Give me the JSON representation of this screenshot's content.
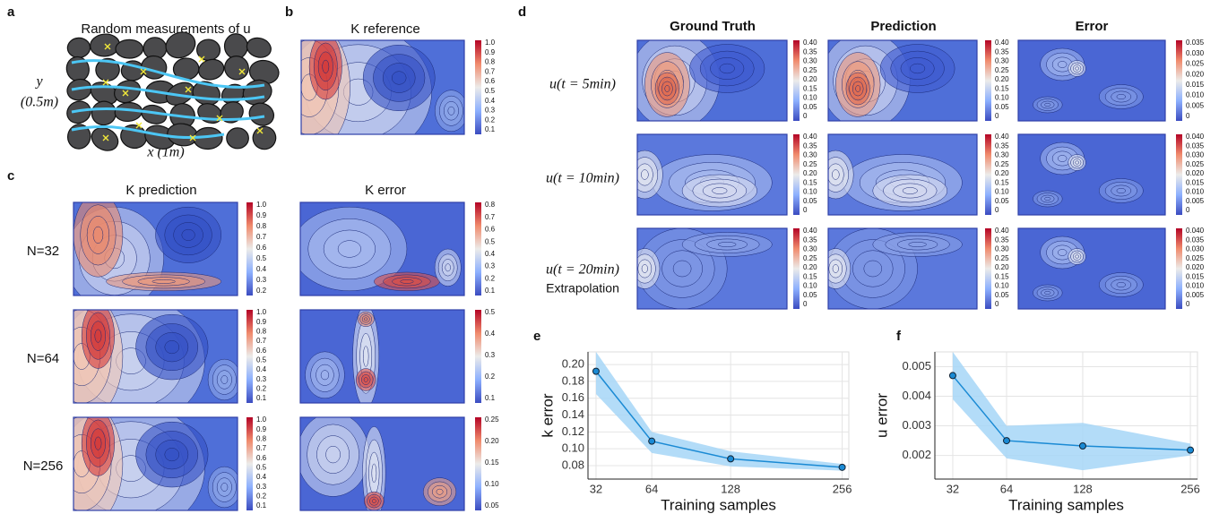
{
  "panels": {
    "a": {
      "label": "a",
      "title": "Random measurements of u",
      "y_label": "y",
      "y_unit": "(0.5m)",
      "x_label": "x (1m)"
    },
    "b": {
      "label": "b",
      "title": "K reference",
      "colorbar": [
        "1.0",
        "0.9",
        "0.8",
        "0.7",
        "0.6",
        "0.5",
        "0.4",
        "0.3",
        "0.2",
        "0.1"
      ]
    },
    "c": {
      "label": "c",
      "columns": [
        "K prediction",
        "K error"
      ],
      "rows": [
        {
          "name": "N=32",
          "prediction_colorbar": [
            "1.0",
            "0.9",
            "0.8",
            "0.7",
            "0.6",
            "0.5",
            "0.4",
            "0.3",
            "0.2"
          ],
          "error_colorbar": [
            "0.8",
            "0.7",
            "0.6",
            "0.5",
            "0.4",
            "0.3",
            "0.2",
            "0.1"
          ]
        },
        {
          "name": "N=64",
          "prediction_colorbar": [
            "1.0",
            "0.9",
            "0.8",
            "0.7",
            "0.6",
            "0.5",
            "0.4",
            "0.3",
            "0.2",
            "0.1"
          ],
          "error_colorbar": [
            "0.5",
            "0.4",
            "0.3",
            "0.2",
            "0.1"
          ]
        },
        {
          "name": "N=256",
          "prediction_colorbar": [
            "1.0",
            "0.9",
            "0.8",
            "0.7",
            "0.6",
            "0.5",
            "0.4",
            "0.3",
            "0.2",
            "0.1"
          ],
          "error_colorbar": [
            "0.25",
            "0.20",
            "0.15",
            "0.10",
            "0.05"
          ]
        }
      ]
    },
    "d": {
      "label": "d",
      "columns": [
        "Ground Truth",
        "Prediction",
        "Error"
      ],
      "rows": [
        {
          "name": "u(t = 5min)",
          "colorbars": [
            [
              "0.40",
              "0.35",
              "0.30",
              "0.25",
              "0.20",
              "0.15",
              "0.10",
              "0.05",
              "0"
            ],
            [
              "0.40",
              "0.35",
              "0.30",
              "0.25",
              "0.20",
              "0.15",
              "0.10",
              "0.05",
              "0"
            ],
            [
              "0.035",
              "0.030",
              "0.025",
              "0.020",
              "0.015",
              "0.010",
              "0.005",
              "0"
            ]
          ]
        },
        {
          "name": "u(t = 10min)",
          "colorbars": [
            [
              "0.40",
              "0.35",
              "0.30",
              "0.25",
              "0.20",
              "0.15",
              "0.10",
              "0.05",
              "0"
            ],
            [
              "0.40",
              "0.35",
              "0.30",
              "0.25",
              "0.20",
              "0.15",
              "0.10",
              "0.05",
              "0"
            ],
            [
              "0.040",
              "0.035",
              "0.030",
              "0.025",
              "0.020",
              "0.015",
              "0.010",
              "0.005",
              "0"
            ]
          ]
        },
        {
          "name": "u(t = 20min)",
          "note": "Extrapolation",
          "colorbars": [
            [
              "0.40",
              "0.35",
              "0.30",
              "0.25",
              "0.20",
              "0.15",
              "0.10",
              "0.05",
              "0"
            ],
            [
              "0.40",
              "0.35",
              "0.30",
              "0.25",
              "0.20",
              "0.15",
              "0.10",
              "0.05",
              "0"
            ],
            [
              "0.040",
              "0.035",
              "0.030",
              "0.025",
              "0.020",
              "0.015",
              "0.010",
              "0.005",
              "0"
            ]
          ]
        }
      ]
    }
  },
  "chart_data": [
    {
      "type": "line",
      "label": "e",
      "xlabel": "Training samples",
      "ylabel": "k error",
      "x": [
        32,
        64,
        128,
        256
      ],
      "xscale": "sqrt",
      "xlim": [
        28.3,
        265
      ],
      "xticks": [
        32,
        64,
        128,
        256
      ],
      "values": [
        0.192,
        0.109,
        0.088,
        0.078
      ],
      "lower": [
        0.165,
        0.095,
        0.079,
        0.074
      ],
      "upper": [
        0.215,
        0.12,
        0.097,
        0.082
      ],
      "ylim": [
        0.064,
        0.215
      ],
      "yticks": [
        0.08,
        {
          "value": 0.1,
          "label": "0.10"
        },
        0.12,
        0.14,
        0.16,
        0.18,
        {
          "value": 0.2,
          "label": "0.20"
        }
      ],
      "grid": true,
      "color": "#1a8ad4",
      "band_color": "#a6d6f7"
    },
    {
      "type": "line",
      "label": "f",
      "xlabel": "Training samples",
      "ylabel": "u error",
      "x": [
        32,
        64,
        128,
        256
      ],
      "xscale": "sqrt",
      "xlim": [
        23.8,
        266
      ],
      "xticks": [
        32,
        64,
        128,
        256
      ],
      "values": [
        0.0047,
        0.0025,
        0.00232,
        0.00218
      ],
      "lower": [
        0.0039,
        0.0019,
        0.0015,
        0.002
      ],
      "upper": [
        0.0055,
        0.003,
        0.0031,
        0.0024
      ],
      "ylim": [
        0.0012,
        0.0055
      ],
      "yticks": [
        0.002,
        0.003,
        0.004,
        0.005
      ],
      "grid": true,
      "color": "#1a8ad4",
      "band_color": "#a6d6f7"
    }
  ]
}
